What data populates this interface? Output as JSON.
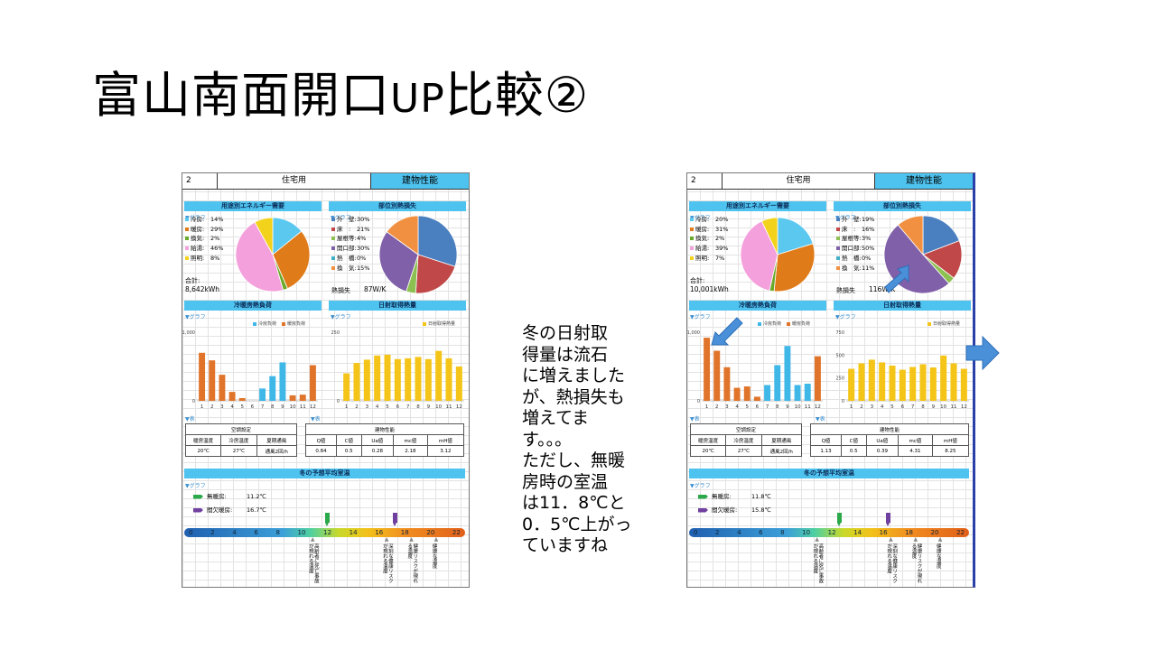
{
  "slide": {
    "title_a": "富山南面開口",
    "title_b": "UP",
    "title_c": "比較②",
    "caption": "冬の日射取\n得量は流石\nに増えました\nが、熱損失も\n増えてま\nす。。。\nただし、無暖\n房時の室温\nは11．8℃と\n0．5℃上がっ\nていますね"
  },
  "panels": [
    {
      "header": {
        "num": "2",
        "use": "住宅用",
        "perf": "建物性能"
      },
      "sections": {
        "energy": "用途別エネルギー需要",
        "loss": "部位別熱損失",
        "load": "冷暖房熱負荷",
        "solar": "日射取得熱量",
        "winter": "冬の予想平均室温"
      },
      "graph_label": "▼グラフ",
      "table_label": "▼表",
      "energy_legend": [
        {
          "name": "冷房:",
          "val": "14%",
          "color": "#5bc8ef"
        },
        {
          "name": "暖房:",
          "val": "29%",
          "color": "#e07b1a"
        },
        {
          "name": "換気:",
          "val": "2%",
          "color": "#6aaa2a"
        },
        {
          "name": "給湯:",
          "val": "46%",
          "color": "#f4a0dc"
        },
        {
          "name": "照明:",
          "val": "8%",
          "color": "#f2d21a"
        }
      ],
      "energy_total_label": "合計:",
      "energy_total": "8,642kWh",
      "loss_legend": [
        {
          "name": "外　壁:",
          "val": "30%",
          "color": "#4a7fc0"
        },
        {
          "name": "床　:",
          "val": "21%",
          "color": "#c04848"
        },
        {
          "name": "屋根等:",
          "val": "4%",
          "color": "#8cc050"
        },
        {
          "name": "開口部:",
          "val": "30%",
          "color": "#8060a8"
        },
        {
          "name": "熱　橋:",
          "val": "0%",
          "color": "#40b0c8"
        },
        {
          "name": "換　気:",
          "val": "15%",
          "color": "#f09040"
        }
      ],
      "loss_total_label": "熱損失",
      "loss_total": "87W/K",
      "load_legend": {
        "cool": "冷房負荷",
        "heat": "暖房負荷"
      },
      "solar_legend": "日射取得熱量",
      "chart_data": [
        {
          "type": "bar",
          "title": "冷暖房熱負荷",
          "categories": [
            "1",
            "2",
            "3",
            "4",
            "5",
            "6",
            "7",
            "8",
            "9",
            "10",
            "11",
            "12"
          ],
          "series": [
            {
              "name": "冷房負荷",
              "values": [
                0,
                0,
                0,
                0,
                0,
                0,
                180,
                360,
                560,
                0,
                0,
                0
              ]
            },
            {
              "name": "暖房負荷",
              "values": [
                700,
                590,
                380,
                130,
                40,
                0,
                0,
                0,
                0,
                80,
                90,
                520
              ]
            }
          ],
          "ylim": [
            0,
            1000
          ],
          "yticks": [
            "0",
            "1,000"
          ]
        },
        {
          "type": "bar",
          "title": "日射取得熱量",
          "categories": [
            "1",
            "2",
            "3",
            "4",
            "5",
            "6",
            "7",
            "8",
            "9",
            "10",
            "11",
            "12"
          ],
          "series": [
            {
              "name": "日射取得熱量",
              "values": [
                100,
                138,
                150,
                165,
                168,
                152,
                155,
                160,
                152,
                182,
                155,
                125
              ]
            }
          ],
          "ylim": [
            0,
            250
          ],
          "yticks": [
            "0",
            "250"
          ]
        }
      ],
      "table": {
        "left_title": "空調設定",
        "left_heads": [
          "暖房温度",
          "冷房温度",
          "夏期通風"
        ],
        "left_vals": [
          "20℃",
          "27℃",
          "通風2回/h"
        ],
        "right_title": "建物性能",
        "right_heads": [
          "Q値",
          "C値",
          "Ua値",
          "mc値",
          "mH値"
        ],
        "right_vals": [
          "0.84",
          "0.5",
          "0.28",
          "2.18",
          "3.12"
        ]
      },
      "unheated_label": "無暖房:",
      "unheated_temp": "11.2℃",
      "intermittent_label": "間欠暖房:",
      "intermittent_temp": "16.7℃",
      "unheated_value": 11.2,
      "intermittent_value": 16.7,
      "scale_ticks": [
        "0",
        "2",
        "4",
        "6",
        "8",
        "10",
        "12",
        "14",
        "16",
        "18",
        "20",
        "22"
      ],
      "notes": [
        "高齢者に死亡事故が現れる温度",
        "深刻な健康リスクが現れる温度",
        "健康リスクが現れる温度",
        "健康な温度"
      ]
    },
    {
      "header": {
        "num": "2",
        "use": "住宅用",
        "perf": "建物性能"
      },
      "sections": {
        "energy": "用途別エネルギー需要",
        "loss": "部位別熱損失",
        "load": "冷暖房熱負荷",
        "solar": "日射取得熱量",
        "winter": "冬の予想平均室温"
      },
      "graph_label": "▼グラフ",
      "table_label": "▼表",
      "energy_legend": [
        {
          "name": "冷房:",
          "val": "20%",
          "color": "#5bc8ef"
        },
        {
          "name": "暖房:",
          "val": "31%",
          "color": "#e07b1a"
        },
        {
          "name": "換気:",
          "val": "2%",
          "color": "#6aaa2a"
        },
        {
          "name": "給湯:",
          "val": "39%",
          "color": "#f4a0dc"
        },
        {
          "name": "照明:",
          "val": "7%",
          "color": "#f2d21a"
        }
      ],
      "energy_total_label": "合計:",
      "energy_total": "10,001kWh",
      "loss_legend": [
        {
          "name": "外　壁:",
          "val": "19%",
          "color": "#4a7fc0"
        },
        {
          "name": "床　:",
          "val": "16%",
          "color": "#c04848"
        },
        {
          "name": "屋根等:",
          "val": "3%",
          "color": "#8cc050"
        },
        {
          "name": "開口部:",
          "val": "50%",
          "color": "#8060a8"
        },
        {
          "name": "熱　橋:",
          "val": "0%",
          "color": "#40b0c8"
        },
        {
          "name": "換　気:",
          "val": "11%",
          "color": "#f09040"
        }
      ],
      "loss_total_label": "熱損失",
      "loss_total": "116W/K",
      "load_legend": {
        "cool": "冷房負荷",
        "heat": "暖房負荷"
      },
      "solar_legend": "日射取得熱量",
      "chart_data": [
        {
          "type": "bar",
          "title": "冷暖房熱負荷",
          "categories": [
            "1",
            "2",
            "3",
            "4",
            "5",
            "6",
            "7",
            "8",
            "9",
            "10",
            "11",
            "12"
          ],
          "series": [
            {
              "name": "冷房負荷",
              "values": [
                0,
                0,
                0,
                0,
                0,
                0,
                230,
                520,
                800,
                230,
                250,
                0
              ]
            },
            {
              "name": "暖房負荷",
              "values": [
                920,
                730,
                490,
                190,
                210,
                60,
                0,
                0,
                0,
                0,
                0,
                650
              ]
            }
          ],
          "ylim": [
            0,
            1000
          ],
          "yticks": [
            "0",
            "1,000"
          ]
        },
        {
          "type": "bar",
          "title": "日射取得熱量",
          "categories": [
            "1",
            "2",
            "3",
            "4",
            "5",
            "6",
            "7",
            "8",
            "9",
            "10",
            "11",
            "12"
          ],
          "series": [
            {
              "name": "日射取得熱量",
              "values": [
                350,
                410,
                450,
                420,
                385,
                340,
                370,
                400,
                365,
                495,
                410,
                350
              ]
            }
          ],
          "ylim": [
            0,
            750
          ],
          "yticks": [
            "0",
            "250",
            "500",
            "750"
          ]
        }
      ],
      "table": {
        "left_title": "空調設定",
        "left_heads": [
          "暖房温度",
          "冷房温度",
          "夏期通風"
        ],
        "left_vals": [
          "20℃",
          "27℃",
          "通風2回/h"
        ],
        "right_title": "建物性能",
        "right_heads": [
          "Q値",
          "C値",
          "Ua値",
          "mc値",
          "mH値"
        ],
        "right_vals": [
          "1.13",
          "0.5",
          "0.39",
          "4.31",
          "8.25"
        ]
      },
      "unheated_label": "無暖房:",
      "unheated_temp": "11.8℃",
      "intermittent_label": "間欠暖房:",
      "intermittent_temp": "15.8℃",
      "unheated_value": 11.8,
      "intermittent_value": 15.8,
      "scale_ticks": [
        "0",
        "2",
        "4",
        "6",
        "8",
        "10",
        "12",
        "14",
        "16",
        "18",
        "20",
        "22"
      ],
      "notes": [
        "高齢者に死亡事故が現れる温度",
        "深刻な健康リスクが現れる温度",
        "健康リスクが現れる温度",
        "健康な温度"
      ]
    }
  ],
  "colors": {
    "header_blue": "#4fc3ef",
    "cool": "#3fb8e8",
    "heat": "#e0742a",
    "solar": "#f4c518",
    "annot_arrow": "#4a90d9"
  }
}
